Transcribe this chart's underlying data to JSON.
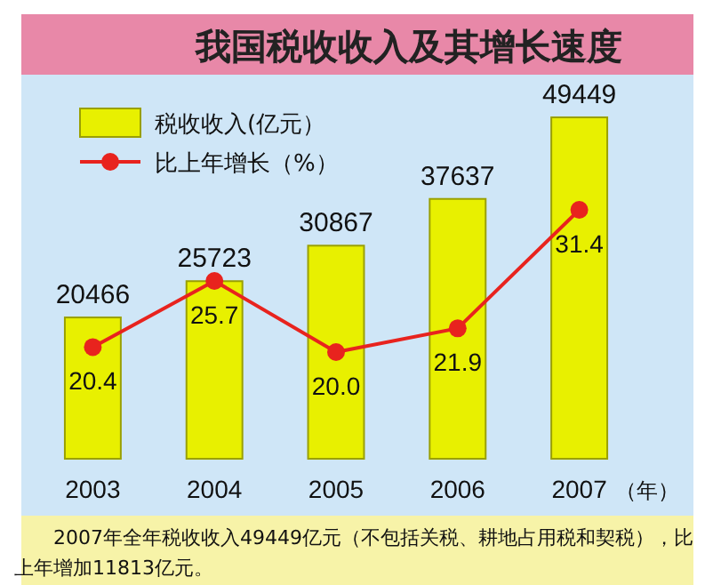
{
  "chart_data": {
    "type": "bar",
    "title": "我国税收收入及其增长速度",
    "categories": [
      "2003",
      "2004",
      "2005",
      "2006",
      "2007"
    ],
    "xlabel": "（年）",
    "series": [
      {
        "name": "税收收入(亿元）",
        "color": "#e8f000",
        "values": [
          20466,
          25723,
          30867,
          37637,
          49449
        ]
      },
      {
        "name": "比上年增长（%）",
        "type": "line",
        "axis": "y2",
        "color": "#e8231e",
        "marker": "circle",
        "values": [
          20.4,
          25.7,
          20.0,
          21.9,
          31.4
        ],
        "value_labels": [
          "20.4",
          "25.7",
          "20.0",
          "21.9",
          "31.4"
        ]
      }
    ],
    "data_labels": true,
    "legend": "top left",
    "grid": false,
    "annotations": [
      "2007年全年税收收入49449亿元（不包括关税、耕地占用税和契税），比上年增加11813亿元。"
    ]
  }
}
